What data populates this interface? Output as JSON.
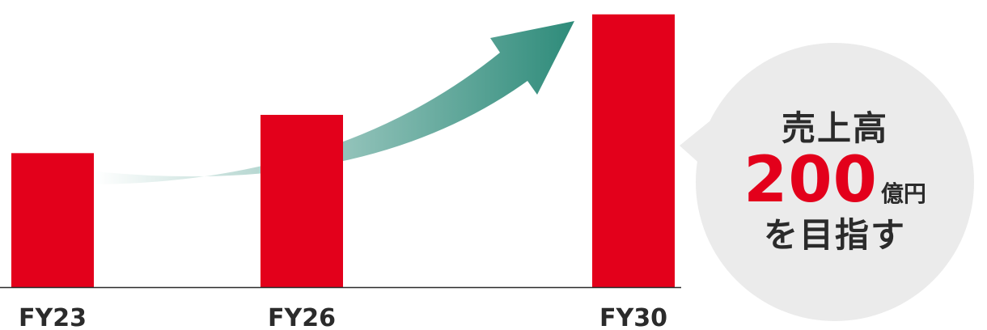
{
  "chart_data": {
    "type": "bar",
    "categories": [
      "FY23",
      "FY26",
      "FY30"
    ],
    "values": [
      84,
      108,
      171
    ],
    "ylim": [
      0,
      180
    ],
    "bar_color": "#e3001b",
    "arrow_color": "#2e8b7a",
    "grid": false,
    "legend": "none"
  },
  "callout": {
    "line1": "売上高",
    "amount": "200",
    "unit": "億円",
    "line3": "を目指す",
    "bubble_color": "#ebebeb",
    "accent_color": "#e3001b"
  }
}
